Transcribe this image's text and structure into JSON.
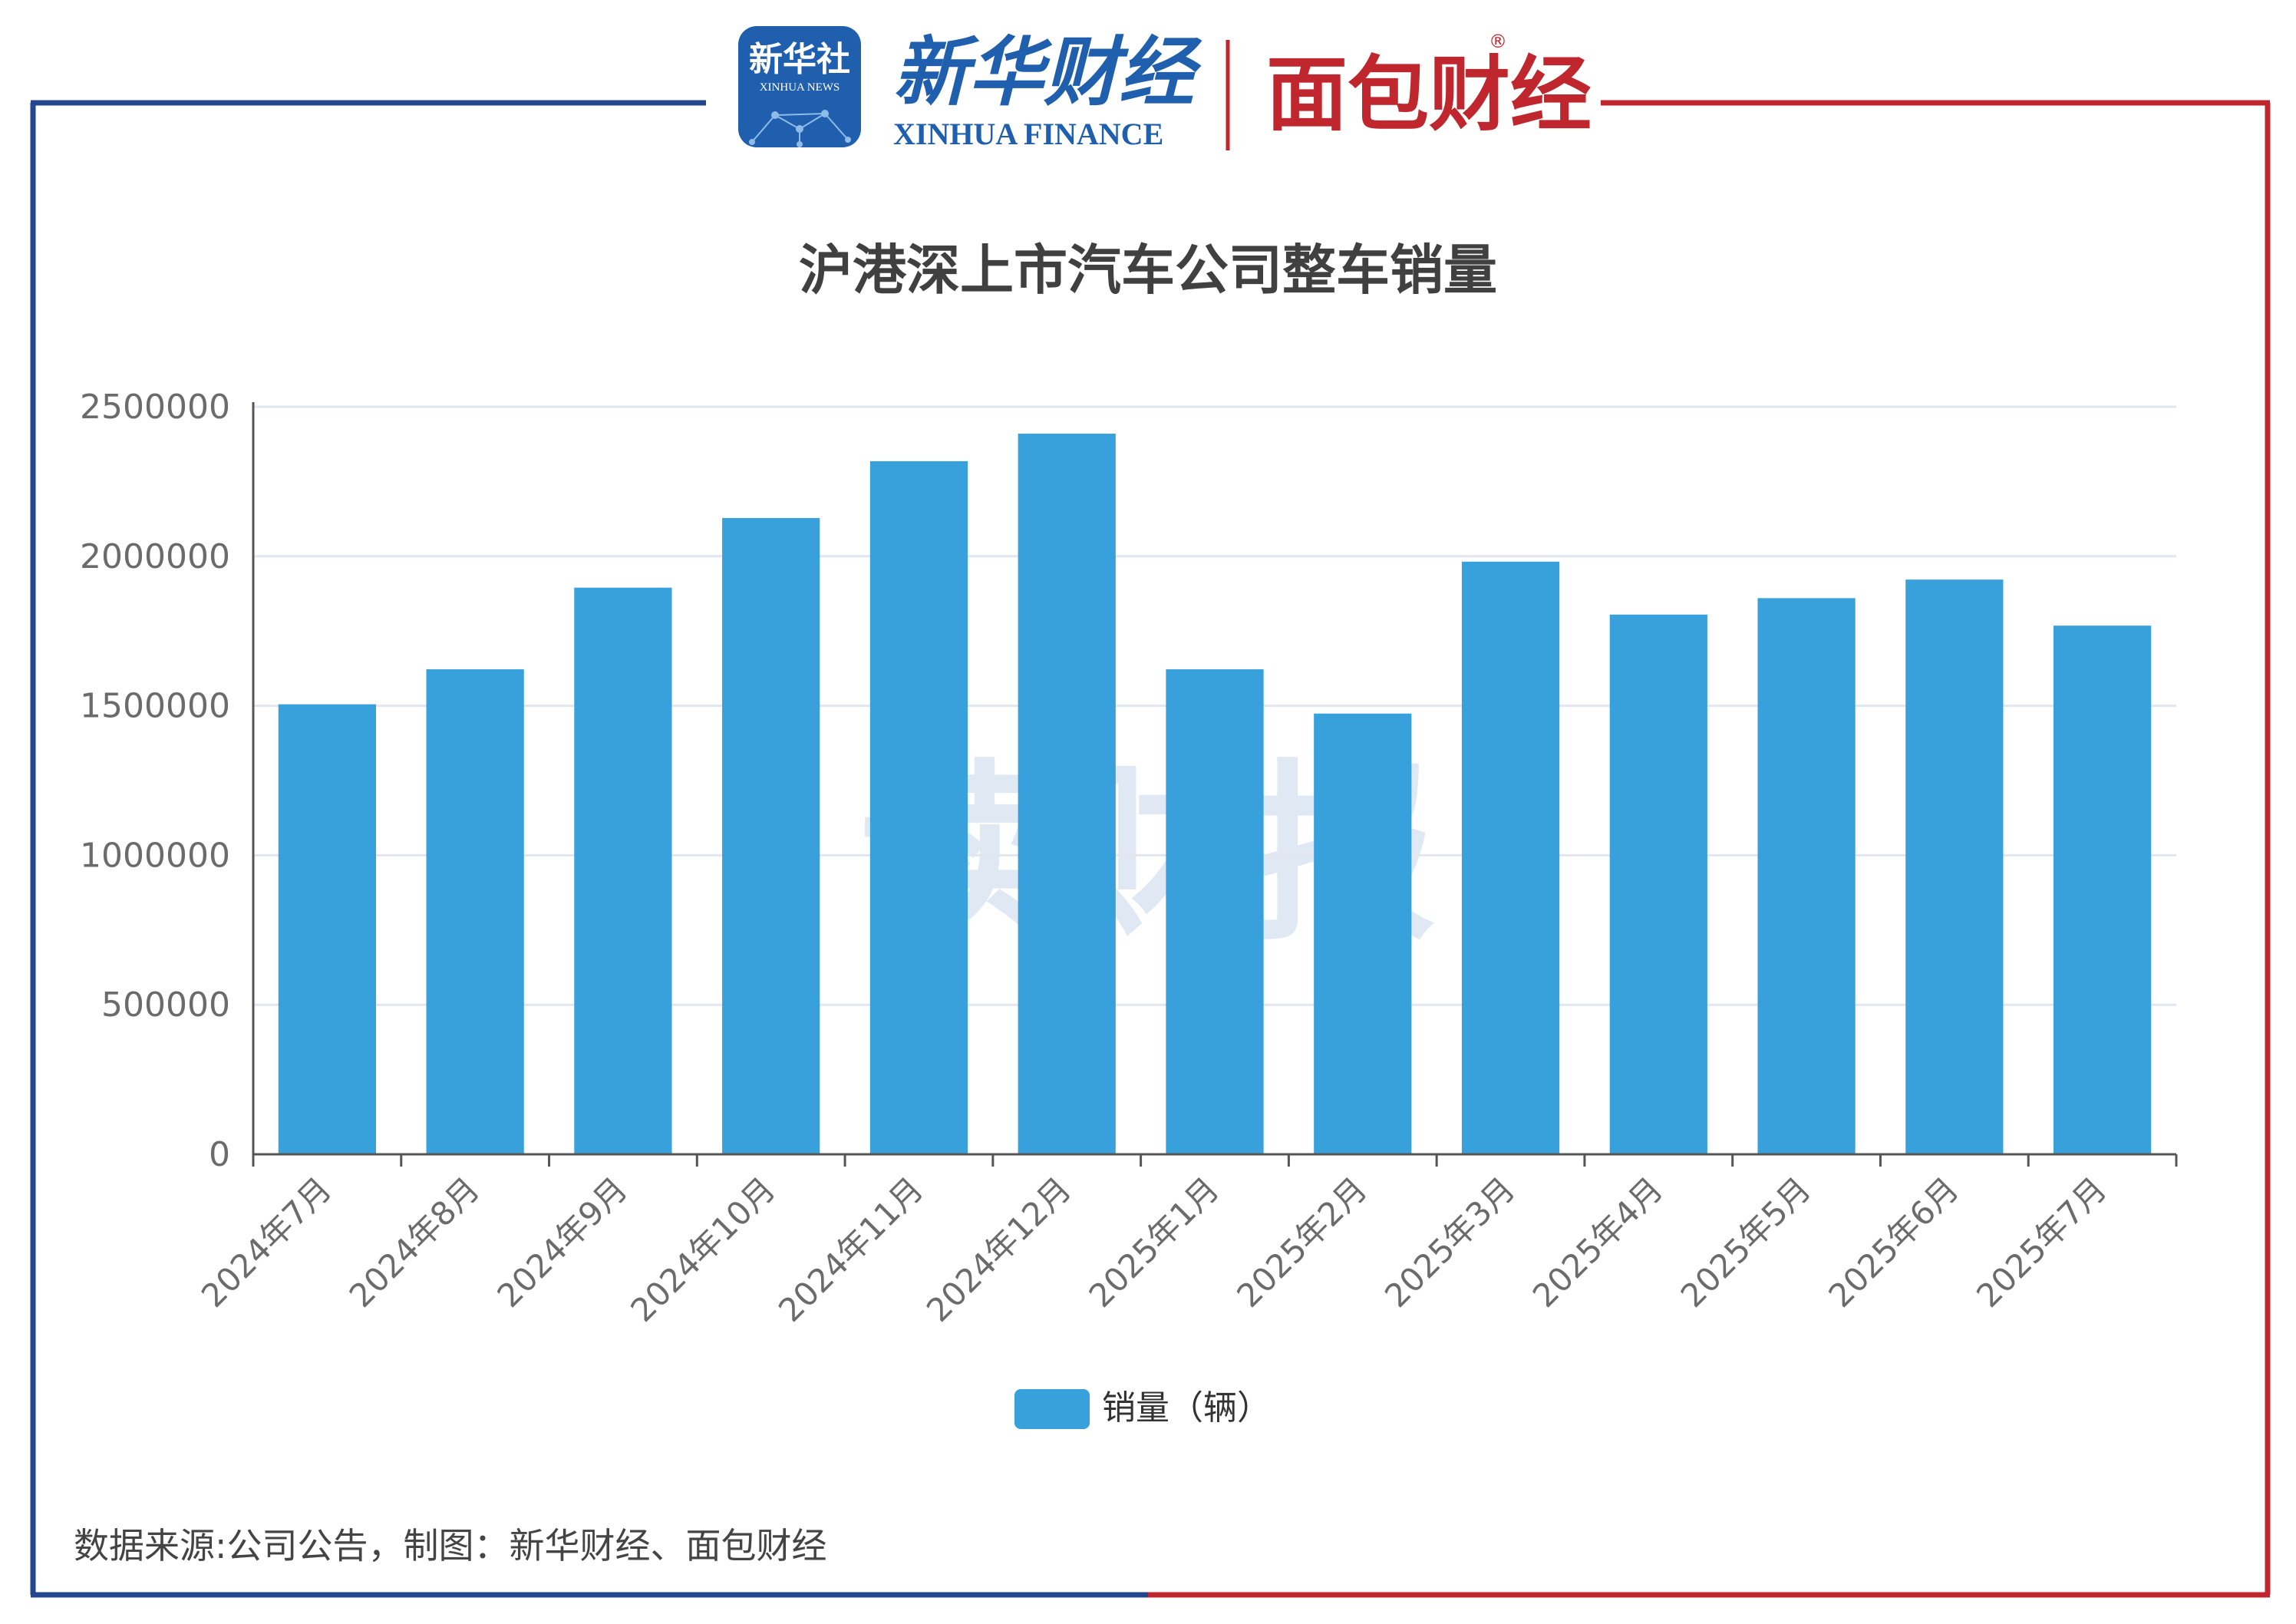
{
  "header": {
    "xinhua_badge_cn": "新华社",
    "xinhua_badge_en": "XINHUA NEWS",
    "xinhua_finance_cn": "新华财经",
    "xinhua_finance_en": "XINHUA FINANCE",
    "mianbao_cn": "面包财经",
    "registered_mark": "®"
  },
  "colors": {
    "frame_left": "#23468e",
    "frame_right": "#c0262d",
    "bar": "#38a1db",
    "xinhua_badge": "#1f5fae",
    "xinhua_finance": "#1f5fae",
    "mianbao": "#c0262d",
    "watermark": "#d6e2f0"
  },
  "watermark": "读财报",
  "chart_data": {
    "type": "bar",
    "title": "沪港深上市汽车公司整车销量",
    "categories": [
      "2024年7月",
      "2024年8月",
      "2024年9月",
      "2024年10月",
      "2024年11月",
      "2024年12月",
      "2025年1月",
      "2025年2月",
      "2025年3月",
      "2025年4月",
      "2025年5月",
      "2025年6月",
      "2025年7月"
    ],
    "series": [
      {
        "name": "销量（辆）",
        "values": [
          1505000,
          1622000,
          1895000,
          2128000,
          2318000,
          2410000,
          1622000,
          1474000,
          1982000,
          1805000,
          1860000,
          1922000,
          1768000
        ]
      }
    ],
    "y_ticks": [
      0,
      500000,
      1000000,
      1500000,
      2000000,
      2500000
    ],
    "ylim": [
      0,
      2500000
    ],
    "grid": true,
    "legend": "bottom-center"
  },
  "footer": {
    "source": "数据来源:公司公告，制图：新华财经、面包财经"
  }
}
